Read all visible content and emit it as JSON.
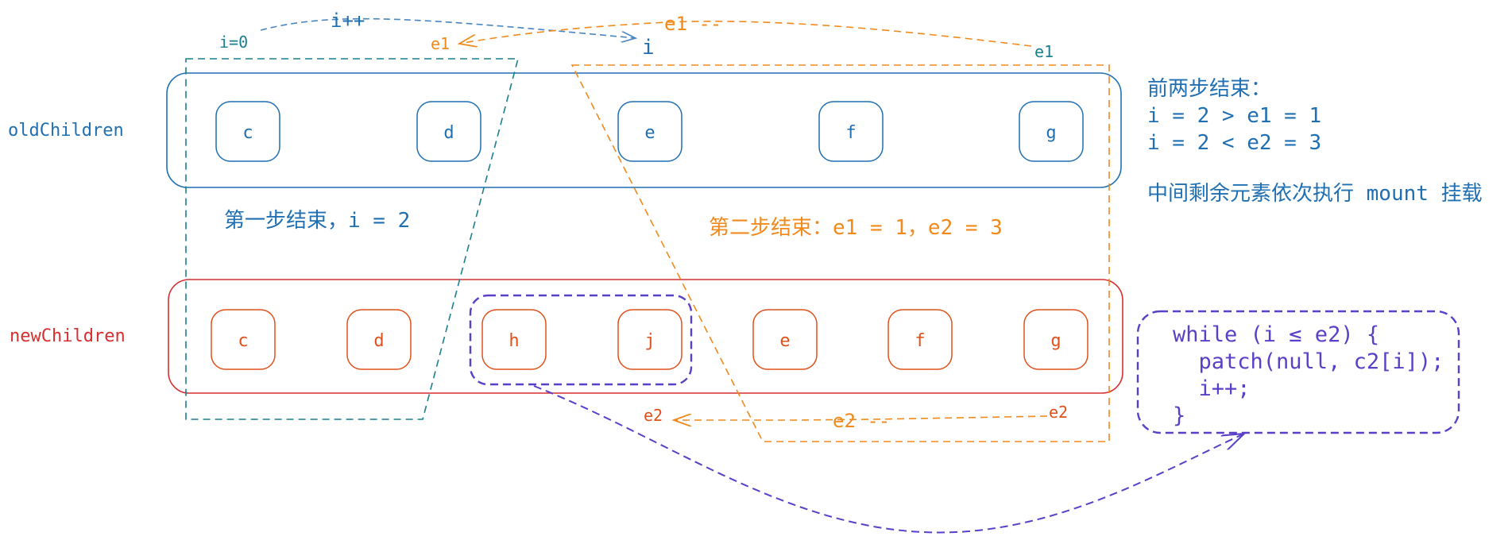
{
  "labels": {
    "old_children": "oldChildren",
    "new_children": "newChildren"
  },
  "old_nodes": [
    "c",
    "d",
    "e",
    "f",
    "g"
  ],
  "new_nodes": [
    "c",
    "d",
    "h",
    "j",
    "e",
    "f",
    "g"
  ],
  "annotations": {
    "i_start": "i=0",
    "i_increment": "i++",
    "i_marker": "i",
    "e1_left": "e1",
    "e1_decrement": "e1 --",
    "e1_right": "e1",
    "e2_left": "e2",
    "e2_decrement": "e2 --",
    "e2_right": "e2",
    "step1_result": "第一步结束，i = 2",
    "step2_result": "第二步结束：e1 = 1，e2 = 3"
  },
  "side_note": {
    "title": "前两步结束：",
    "line1": "i = 2 > e1 = 1",
    "line2": "i = 2 < e2 = 3",
    "line3": "中间剩余元素依次执行 mount 挂载"
  },
  "code": {
    "line1": "while (i ≤ e2) {",
    "line2": "  patch(null, c2[i]);",
    "line3": "  i++;",
    "line4": "}"
  },
  "colors": {
    "blue": "#1f6fb2",
    "red": "#d62f2f",
    "orange": "#f08a1c",
    "node_red_text": "#e0501a",
    "teal": "#1a7f8e",
    "purple": "#5a3fc8"
  }
}
